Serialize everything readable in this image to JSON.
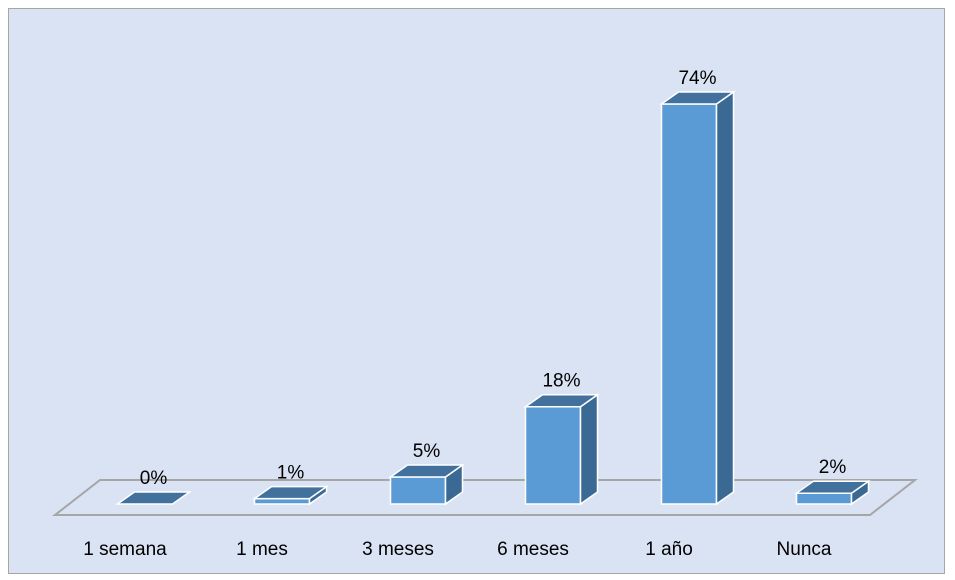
{
  "chart_data": {
    "type": "bar",
    "title": "",
    "xlabel": "",
    "ylabel": "",
    "categories": [
      "1 semana",
      "1 mes",
      "3 meses",
      "6 meses",
      "1 año",
      "Nunca"
    ],
    "values": [
      0,
      1,
      5,
      18,
      74,
      2
    ],
    "data_labels": [
      "0%",
      "1%",
      "5%",
      "18%",
      "74%",
      "2%"
    ],
    "ylim": [
      0,
      74
    ],
    "grid": false,
    "legend": "none",
    "style": "3d-column",
    "colors": {
      "front": "#5b9bd5",
      "top": "#41719c",
      "side": "#3a6a94",
      "bar_outline": "#ffffff",
      "floor_outline": "#a6a6a6",
      "plot_background": "#dae3f3"
    }
  }
}
